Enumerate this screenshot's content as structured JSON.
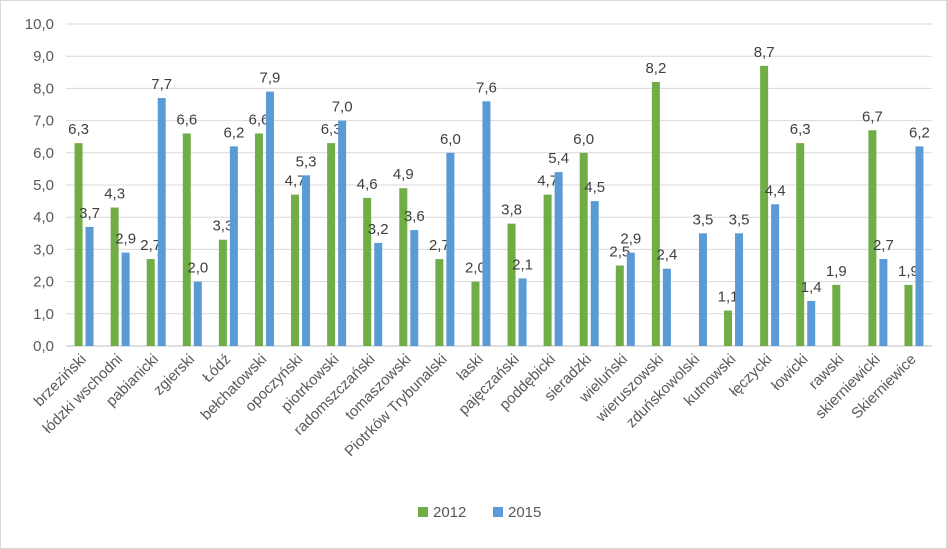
{
  "chart_data": {
    "type": "bar",
    "title": "",
    "xlabel": "",
    "ylabel": "",
    "ylim": [
      0,
      10
    ],
    "yticks": [
      "0,0",
      "1,0",
      "2,0",
      "3,0",
      "4,0",
      "5,0",
      "6,0",
      "7,0",
      "8,0",
      "9,0",
      "10,0"
    ],
    "grid": true,
    "legend_position": "bottom",
    "categories": [
      "brzeziński",
      "łódzki wschodni",
      "pabianicki",
      "zgierski",
      "Łódź",
      "bełchatowski",
      "opoczyński",
      "piotrkowski",
      "radomszczański",
      "tomaszowski",
      "Piotrków Trybunalski",
      "łaski",
      "pajęczański",
      "poddębicki",
      "sieradzki",
      "wieluński",
      "wieruszowski",
      "zduńskowolski",
      "kutnowski",
      "łęczycki",
      "łowicki",
      "rawski",
      "skierniewicki",
      "Skierniewice"
    ],
    "series": [
      {
        "name": "2012",
        "color": "#70ad47",
        "values": [
          6.3,
          4.3,
          2.7,
          6.6,
          3.3,
          6.6,
          4.7,
          6.3,
          4.6,
          4.9,
          2.7,
          2.0,
          3.8,
          4.7,
          6.0,
          2.5,
          8.2,
          null,
          1.1,
          8.7,
          6.3,
          1.9,
          6.7,
          1.9
        ],
        "labels": [
          "6,3",
          "4,3",
          "2,7",
          "6,6",
          "3,3",
          "6,6",
          "4,7",
          "6,3",
          "4,6",
          "4,9",
          "2,7",
          "2,0",
          "3,8",
          "4,7",
          "6,0",
          "2,5",
          "8,2",
          "",
          "1,1",
          "8,7",
          "6,3",
          "1,9",
          "6,7",
          "1,9"
        ]
      },
      {
        "name": "2015",
        "color": "#5b9bd5",
        "values": [
          3.7,
          2.9,
          7.7,
          2.0,
          6.2,
          7.9,
          5.3,
          7.0,
          3.2,
          3.6,
          6.0,
          7.6,
          2.1,
          5.4,
          4.5,
          2.9,
          2.4,
          3.5,
          3.5,
          4.4,
          1.4,
          null,
          2.7,
          6.2
        ],
        "labels": [
          "3,7",
          "2,9",
          "7,7",
          "2,0",
          "6,2",
          "7,9",
          "5,3",
          "7,0",
          "3,2",
          "3,6",
          "6,0",
          "7,6",
          "2,1",
          "5,4",
          "4,5",
          "2,9",
          "2,4",
          "3,5",
          "3,5",
          "4,4",
          "1,4",
          "",
          "2,7",
          "6,2"
        ]
      }
    ]
  }
}
